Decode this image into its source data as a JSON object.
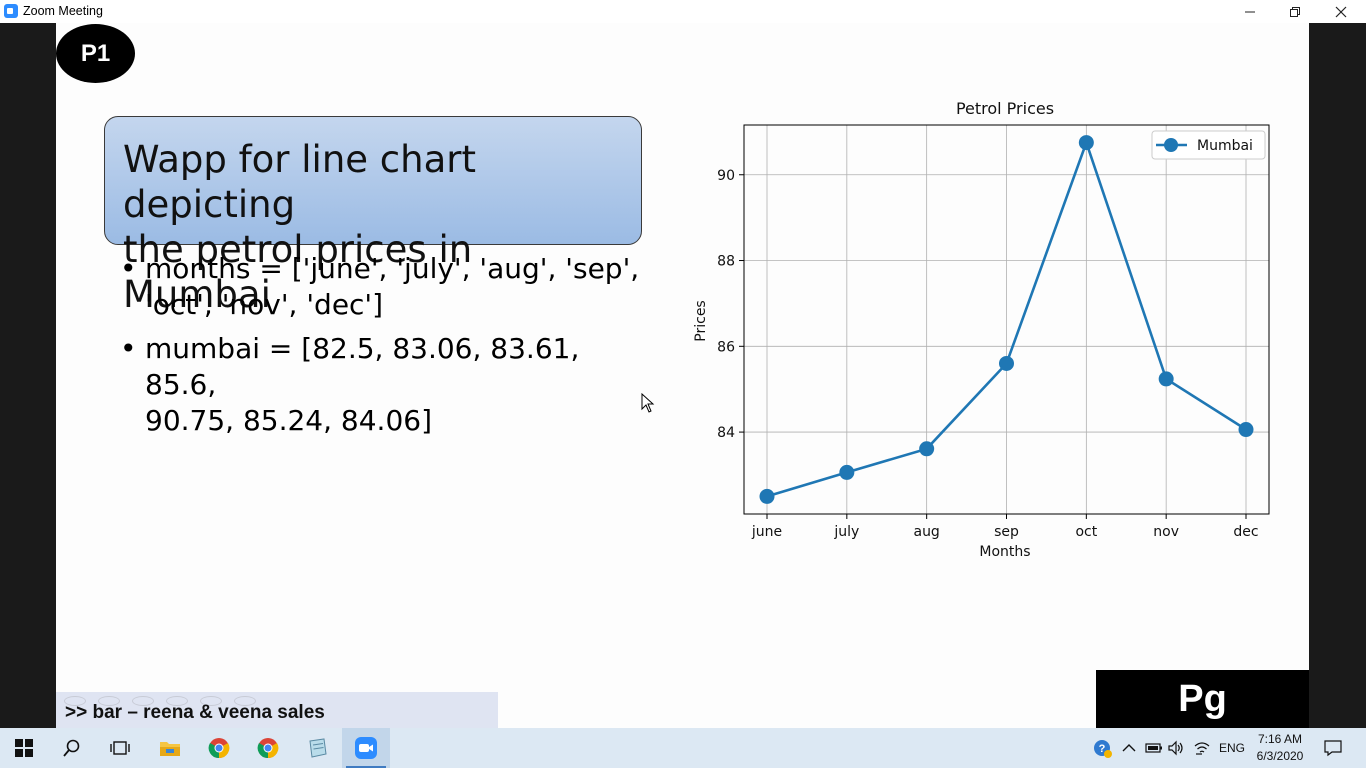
{
  "window": {
    "title": "Zoom Meeting"
  },
  "slide": {
    "badge": "P1",
    "title_lines": [
      "Wapp for line chart depicting",
      "the petrol prices in Mumbai"
    ],
    "bullets": [
      [
        "months = ['june', 'july', 'aug', 'sep',",
        "'oct', 'nov', 'dec']"
      ],
      [
        "mumbai = [82.5, 83.06, 83.61, 85.6,",
        "90.75, 85.24, 84.06]"
      ]
    ],
    "bottom_caption": ">> bar – reena & veena sales",
    "page_label": "Pg"
  },
  "chart_data": {
    "type": "line",
    "title": "Petrol Prices",
    "xlabel": "Months",
    "ylabel": "Prices",
    "categories": [
      "june",
      "july",
      "aug",
      "sep",
      "oct",
      "nov",
      "dec"
    ],
    "series": [
      {
        "name": "Mumbai",
        "values": [
          82.5,
          83.06,
          83.61,
          85.6,
          90.75,
          85.24,
          84.06
        ],
        "color": "#1f77b4",
        "marker": "circle"
      }
    ],
    "yticks": [
      84,
      86,
      88,
      90
    ],
    "ylim": [
      82.09,
      91.16
    ],
    "grid": true,
    "legend_position": "top-right"
  },
  "taskbar": {
    "apps": [
      "start-icon",
      "search-icon",
      "task-view-icon",
      "file-explorer-icon",
      "chrome-icon",
      "chrome-icon",
      "notepad-icon",
      "zoom-icon"
    ],
    "language": "ENG",
    "time": "7:16 AM",
    "date": "6/3/2020"
  }
}
